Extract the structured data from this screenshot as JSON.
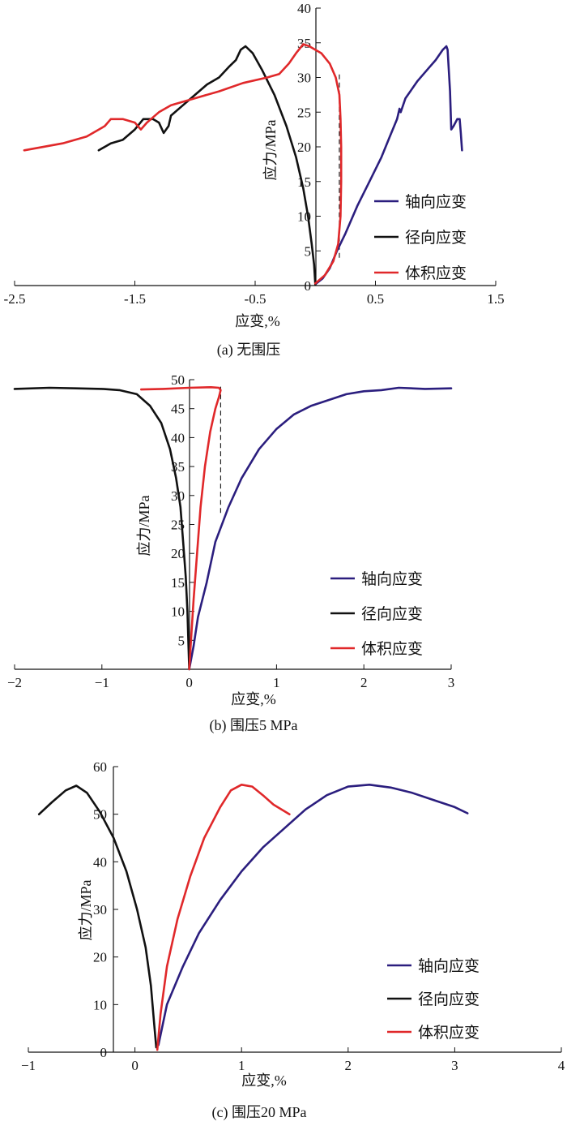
{
  "chart_data": [
    {
      "type": "line",
      "caption": "(a) 无围压",
      "xlabel": "应变,%",
      "ylabel": "应力/MPa",
      "xlim": [
        -2.5,
        1.5
      ],
      "ylim": [
        0,
        40
      ],
      "xticks": [
        "-2.5",
        "-1.5",
        "-0.5",
        "0.5",
        "1.5"
      ],
      "xtick_values": [
        -2.5,
        -1.5,
        -0.5,
        0.5,
        1.5
      ],
      "yticks": [
        "0",
        "5",
        "10",
        "15",
        "20",
        "25",
        "30",
        "35",
        "40"
      ],
      "ytick_values": [
        0,
        5,
        10,
        15,
        20,
        25,
        30,
        35,
        40
      ],
      "dashed_line": {
        "x": 0.2,
        "y": [
          4,
          30.5
        ]
      },
      "legend_position": "bottom-right",
      "series": [
        {
          "name": "轴向应变",
          "color": "#2b1e7e",
          "points": [
            [
              0.0,
              0.2
            ],
            [
              0.06,
              1.0
            ],
            [
              0.12,
              2.5
            ],
            [
              0.18,
              5.0
            ],
            [
              0.25,
              7.5
            ],
            [
              0.35,
              11.5
            ],
            [
              0.45,
              15.0
            ],
            [
              0.55,
              18.5
            ],
            [
              0.62,
              21.5
            ],
            [
              0.68,
              24.0
            ],
            [
              0.7,
              25.5
            ],
            [
              0.71,
              25.0
            ],
            [
              0.75,
              27.0
            ],
            [
              0.85,
              29.5
            ],
            [
              0.95,
              31.5
            ],
            [
              1.0,
              32.5
            ],
            [
              1.06,
              34.0
            ],
            [
              1.09,
              34.5
            ],
            [
              1.1,
              34.0
            ],
            [
              1.12,
              28.0
            ],
            [
              1.13,
              22.5
            ],
            [
              1.15,
              23.0
            ],
            [
              1.18,
              24.0
            ],
            [
              1.2,
              24.0
            ],
            [
              1.21,
              22.0
            ],
            [
              1.22,
              19.5
            ]
          ]
        },
        {
          "name": "径向应变",
          "color": "#111111",
          "points": [
            [
              0.0,
              0.1
            ],
            [
              -0.01,
              3.0
            ],
            [
              -0.03,
              6.0
            ],
            [
              -0.06,
              10.0
            ],
            [
              -0.1,
              14.0
            ],
            [
              -0.16,
              18.5
            ],
            [
              -0.24,
              23.0
            ],
            [
              -0.34,
              27.5
            ],
            [
              -0.44,
              31.0
            ],
            [
              -0.52,
              33.5
            ],
            [
              -0.58,
              34.5
            ],
            [
              -0.62,
              34.0
            ],
            [
              -0.66,
              32.5
            ],
            [
              -0.72,
              31.5
            ],
            [
              -0.8,
              30.0
            ],
            [
              -0.9,
              29.0
            ],
            [
              -1.0,
              27.5
            ],
            [
              -1.1,
              26.0
            ],
            [
              -1.2,
              24.5
            ],
            [
              -1.22,
              23.0
            ],
            [
              -1.26,
              22.0
            ],
            [
              -1.3,
              23.5
            ],
            [
              -1.35,
              24.0
            ],
            [
              -1.43,
              24.0
            ],
            [
              -1.5,
              22.5
            ],
            [
              -1.6,
              21.0
            ],
            [
              -1.7,
              20.5
            ],
            [
              -1.8,
              19.5
            ]
          ]
        },
        {
          "name": "体积应变",
          "color": "#e0282a",
          "points": [
            [
              0.0,
              0.3
            ],
            [
              0.08,
              1.5
            ],
            [
              0.15,
              3.5
            ],
            [
              0.19,
              6.0
            ],
            [
              0.21,
              10.0
            ],
            [
              0.215,
              15.0
            ],
            [
              0.215,
              20.0
            ],
            [
              0.21,
              24.0
            ],
            [
              0.2,
              27.5
            ],
            [
              0.17,
              30.0
            ],
            [
              0.12,
              32.0
            ],
            [
              0.05,
              33.5
            ],
            [
              -0.05,
              34.5
            ],
            [
              -0.1,
              34.8
            ],
            [
              -0.16,
              33.5
            ],
            [
              -0.22,
              32.0
            ],
            [
              -0.3,
              30.5
            ],
            [
              -0.4,
              30.0
            ],
            [
              -0.6,
              29.2
            ],
            [
              -0.8,
              28.0
            ],
            [
              -1.0,
              27.0
            ],
            [
              -1.2,
              26.0
            ],
            [
              -1.3,
              25.0
            ],
            [
              -1.4,
              23.5
            ],
            [
              -1.45,
              22.5
            ],
            [
              -1.5,
              23.5
            ],
            [
              -1.6,
              24.0
            ],
            [
              -1.7,
              24.0
            ],
            [
              -1.75,
              23.0
            ],
            [
              -1.9,
              21.5
            ],
            [
              -2.1,
              20.5
            ],
            [
              -2.42,
              19.5
            ]
          ]
        }
      ]
    },
    {
      "type": "line",
      "caption": "(b) 围压5 MPa",
      "xlabel": "应变,%",
      "ylabel": "应力/MPa",
      "xlim": [
        -2,
        3
      ],
      "ylim": [
        0,
        50
      ],
      "xticks": [
        "−2",
        "−1",
        "0",
        "1",
        "2",
        "3"
      ],
      "xtick_values": [
        -2,
        -1,
        0,
        1,
        2,
        3
      ],
      "yticks": [
        "5",
        "10",
        "15",
        "20",
        "25",
        "30",
        "35",
        "40",
        "45",
        "50"
      ],
      "ytick_values": [
        5,
        10,
        15,
        20,
        25,
        30,
        35,
        40,
        45,
        50
      ],
      "dashed_line": {
        "x": 0.36,
        "y": [
          27,
          48.8
        ]
      },
      "legend_position": "bottom-right",
      "series": [
        {
          "name": "轴向应变",
          "color": "#2b1e7e",
          "points": [
            [
              0.0,
              0.0
            ],
            [
              0.05,
              4.0
            ],
            [
              0.1,
              9.0
            ],
            [
              0.2,
              15.0
            ],
            [
              0.3,
              22.0
            ],
            [
              0.45,
              28.0
            ],
            [
              0.6,
              33.0
            ],
            [
              0.8,
              38.0
            ],
            [
              1.0,
              41.5
            ],
            [
              1.2,
              44.0
            ],
            [
              1.4,
              45.5
            ],
            [
              1.6,
              46.5
            ],
            [
              1.8,
              47.5
            ],
            [
              2.0,
              48.0
            ],
            [
              2.2,
              48.2
            ],
            [
              2.4,
              48.6
            ],
            [
              2.7,
              48.4
            ],
            [
              3.0,
              48.5
            ]
          ]
        },
        {
          "name": "径向应变",
          "color": "#111111",
          "points": [
            [
              0.0,
              0.0
            ],
            [
              -0.01,
              5.0
            ],
            [
              -0.02,
              10.0
            ],
            [
              -0.04,
              16.0
            ],
            [
              -0.07,
              22.0
            ],
            [
              -0.1,
              28.0
            ],
            [
              -0.15,
              33.0
            ],
            [
              -0.22,
              38.0
            ],
            [
              -0.32,
              42.5
            ],
            [
              -0.45,
              45.5
            ],
            [
              -0.6,
              47.5
            ],
            [
              -0.8,
              48.2
            ],
            [
              -1.0,
              48.4
            ],
            [
              -1.3,
              48.5
            ],
            [
              -1.6,
              48.6
            ],
            [
              -2.0,
              48.4
            ]
          ]
        },
        {
          "name": "体积应变",
          "color": "#e0282a",
          "points": [
            [
              0.0,
              0.0
            ],
            [
              0.02,
              5.0
            ],
            [
              0.05,
              12.0
            ],
            [
              0.09,
              20.0
            ],
            [
              0.13,
              28.0
            ],
            [
              0.18,
              35.0
            ],
            [
              0.24,
              41.0
            ],
            [
              0.3,
              45.0
            ],
            [
              0.34,
              47.0
            ],
            [
              0.36,
              48.2
            ],
            [
              0.34,
              48.6
            ],
            [
              0.25,
              48.7
            ],
            [
              0.0,
              48.6
            ],
            [
              -0.3,
              48.4
            ],
            [
              -0.55,
              48.3
            ]
          ]
        }
      ]
    },
    {
      "type": "line",
      "caption": "(c) 围压20 MPa",
      "xlabel": "应变,%",
      "ylabel": "应力/MPa",
      "xlim": [
        -1,
        4
      ],
      "ylim": [
        0,
        60
      ],
      "xticks": [
        "−1",
        "0",
        "1",
        "2",
        "3",
        "4"
      ],
      "xtick_values": [
        -1,
        0,
        1,
        2,
        3,
        4
      ],
      "yticks": [
        "0",
        "10",
        "20",
        "30",
        "40",
        "50",
        "60"
      ],
      "ytick_values": [
        0,
        10,
        20,
        30,
        40,
        50,
        60
      ],
      "legend_position": "bottom-right",
      "series": [
        {
          "name": "轴向应变",
          "color": "#2b1e7e",
          "points": [
            [
              0.22,
              1.5
            ],
            [
              0.3,
              10.0
            ],
            [
              0.45,
              18.0
            ],
            [
              0.6,
              25.0
            ],
            [
              0.8,
              32.0
            ],
            [
              1.0,
              38.0
            ],
            [
              1.2,
              43.0
            ],
            [
              1.4,
              47.0
            ],
            [
              1.6,
              51.0
            ],
            [
              1.8,
              54.0
            ],
            [
              2.0,
              55.8
            ],
            [
              2.2,
              56.2
            ],
            [
              2.4,
              55.6
            ],
            [
              2.6,
              54.5
            ],
            [
              2.8,
              53.0
            ],
            [
              3.0,
              51.5
            ],
            [
              3.12,
              50.2
            ]
          ]
        },
        {
          "name": "径向应变",
          "color": "#111111",
          "points": [
            [
              0.2,
              1.0
            ],
            [
              0.18,
              6.0
            ],
            [
              0.15,
              14.0
            ],
            [
              0.1,
              22.0
            ],
            [
              0.02,
              30.0
            ],
            [
              -0.08,
              38.0
            ],
            [
              -0.2,
              45.0
            ],
            [
              -0.33,
              50.5
            ],
            [
              -0.45,
              54.5
            ],
            [
              -0.55,
              56.0
            ],
            [
              -0.65,
              55.0
            ],
            [
              -0.78,
              52.5
            ],
            [
              -0.9,
              50.0
            ]
          ]
        },
        {
          "name": "体积应变",
          "color": "#e0282a",
          "points": [
            [
              0.21,
              0.5
            ],
            [
              0.24,
              8.0
            ],
            [
              0.3,
              18.0
            ],
            [
              0.4,
              28.0
            ],
            [
              0.52,
              37.0
            ],
            [
              0.65,
              45.0
            ],
            [
              0.8,
              51.5
            ],
            [
              0.9,
              55.0
            ],
            [
              1.0,
              56.2
            ],
            [
              1.1,
              55.8
            ],
            [
              1.2,
              54.0
            ],
            [
              1.3,
              52.0
            ],
            [
              1.45,
              50.0
            ]
          ]
        }
      ]
    }
  ]
}
